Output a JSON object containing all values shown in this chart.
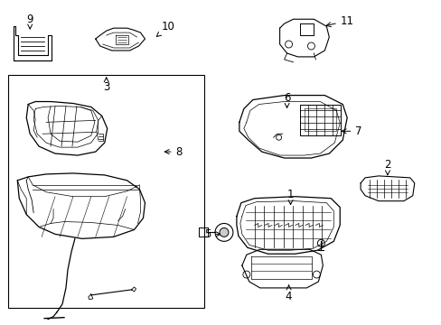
{
  "background_color": "#ffffff",
  "line_color": "#000000",
  "text_color": "#000000",
  "figsize": [
    4.89,
    3.6
  ],
  "dpi": 100,
  "font_size": 8.5
}
